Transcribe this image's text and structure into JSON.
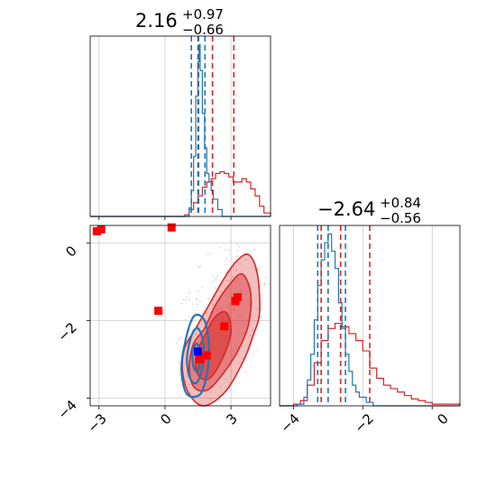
{
  "chart_data": {
    "type": "corner",
    "colors": {
      "red": "#d62728",
      "blue": "#1f77b4",
      "marker_red": "#ff0000",
      "marker_blue": "#0000ff",
      "grid": "#cccccc"
    },
    "titles": [
      {
        "main": "2.16",
        "sup": "+0.97",
        "sub": "−0.66"
      },
      {
        "main": "−2.64",
        "sup": "+0.84",
        "sub": "−0.56"
      }
    ],
    "x_ticks_param0": [
      "−3",
      "0",
      "3"
    ],
    "x_ticks_param1": [
      "−4",
      "−2",
      "0"
    ],
    "y_ticks_param1": [
      "0",
      "−2",
      "−4"
    ],
    "xlim_param0": [
      -3.4,
      4.8
    ],
    "xlim_param1": [
      -4.4,
      0.8
    ],
    "ylim_param1": [
      -4.2,
      0.45
    ],
    "hist_param0": {
      "red_quantiles": [
        1.5,
        2.16,
        3.13
      ],
      "blue_quantiles": [
        1.2,
        1.53,
        1.82
      ],
      "red": [
        [
          -3.4,
          0
        ],
        [
          0.5,
          0
        ],
        [
          0.9,
          0.01
        ],
        [
          1.1,
          0.04
        ],
        [
          1.3,
          0.08
        ],
        [
          1.5,
          0.12
        ],
        [
          1.7,
          0.17
        ],
        [
          1.9,
          0.2
        ],
        [
          2.1,
          0.22
        ],
        [
          2.3,
          0.25
        ],
        [
          2.5,
          0.26
        ],
        [
          2.7,
          0.25
        ],
        [
          2.9,
          0.23
        ],
        [
          3.1,
          0.2
        ],
        [
          3.3,
          0.2
        ],
        [
          3.5,
          0.22
        ],
        [
          3.7,
          0.2
        ],
        [
          3.9,
          0.16
        ],
        [
          4.1,
          0.12
        ],
        [
          4.3,
          0.06
        ],
        [
          4.5,
          0.02
        ],
        [
          4.8,
          0
        ]
      ],
      "blue": [
        [
          -3.4,
          0
        ],
        [
          0.9,
          0
        ],
        [
          1.1,
          0.05
        ],
        [
          1.2,
          0.15
        ],
        [
          1.3,
          0.35
        ],
        [
          1.4,
          0.7
        ],
        [
          1.5,
          0.9
        ],
        [
          1.55,
          1.0
        ],
        [
          1.6,
          0.85
        ],
        [
          1.7,
          0.6
        ],
        [
          1.8,
          0.4
        ],
        [
          1.9,
          0.25
        ],
        [
          2.0,
          0.2
        ],
        [
          2.1,
          0.15
        ],
        [
          2.2,
          0.1
        ],
        [
          2.4,
          0.04
        ],
        [
          2.6,
          0
        ],
        [
          4.8,
          0
        ]
      ]
    },
    "hist_param1": {
      "red_quantiles": [
        -3.2,
        -2.64,
        -1.8
      ],
      "blue_quantiles": [
        -3.3,
        -3.0,
        -2.5
      ],
      "red": [
        [
          -4.4,
          0
        ],
        [
          -4.0,
          0.01
        ],
        [
          -3.8,
          0.03
        ],
        [
          -3.6,
          0.12
        ],
        [
          -3.4,
          0.25
        ],
        [
          -3.2,
          0.38
        ],
        [
          -3.0,
          0.45
        ],
        [
          -2.8,
          0.48
        ],
        [
          -2.6,
          0.46
        ],
        [
          -2.4,
          0.42
        ],
        [
          -2.2,
          0.38
        ],
        [
          -2.0,
          0.32
        ],
        [
          -1.8,
          0.22
        ],
        [
          -1.6,
          0.16
        ],
        [
          -1.4,
          0.12
        ],
        [
          -1.2,
          0.1
        ],
        [
          -1.0,
          0.08
        ],
        [
          -0.8,
          0.06
        ],
        [
          -0.6,
          0.04
        ],
        [
          -0.4,
          0.03
        ],
        [
          -0.2,
          0.02
        ],
        [
          0.0,
          0.01
        ],
        [
          0.2,
          0.01
        ],
        [
          0.8,
          0
        ]
      ],
      "blue": [
        [
          -4.4,
          0
        ],
        [
          -3.9,
          0.01
        ],
        [
          -3.7,
          0.05
        ],
        [
          -3.6,
          0.15
        ],
        [
          -3.5,
          0.3
        ],
        [
          -3.4,
          0.5
        ],
        [
          -3.3,
          0.7
        ],
        [
          -3.2,
          0.85
        ],
        [
          -3.1,
          0.95
        ],
        [
          -3.0,
          1.0
        ],
        [
          -2.9,
          0.9
        ],
        [
          -2.8,
          0.8
        ],
        [
          -2.7,
          0.6
        ],
        [
          -2.6,
          0.45
        ],
        [
          -2.5,
          0.3
        ],
        [
          -2.4,
          0.2
        ],
        [
          -2.3,
          0.12
        ],
        [
          -2.2,
          0.08
        ],
        [
          -2.1,
          0.05
        ],
        [
          -1.9,
          0.02
        ],
        [
          -1.7,
          0
        ],
        [
          0.8,
          0
        ]
      ]
    },
    "scatter_red_markers": [
      [
        -3.1,
        0.3
      ],
      [
        -2.9,
        0.35
      ],
      [
        0.3,
        0.4
      ],
      [
        -0.3,
        -1.75
      ],
      [
        3.3,
        -1.4
      ],
      [
        3.2,
        -1.5
      ],
      [
        2.7,
        -2.15
      ],
      [
        1.9,
        -2.9
      ],
      [
        1.6,
        -3.0
      ]
    ],
    "scatter_blue_markers": [
      [
        1.5,
        -2.8
      ]
    ],
    "contours_red": [
      {
        "alpha": 0.5,
        "points": [
          [
            1.1,
            -3.9
          ],
          [
            0.8,
            -3.3
          ],
          [
            0.9,
            -2.7
          ],
          [
            1.4,
            -2.2
          ],
          [
            2.0,
            -1.6
          ],
          [
            2.6,
            -1.0
          ],
          [
            3.2,
            -0.5
          ],
          [
            3.8,
            -0.3
          ],
          [
            4.2,
            -0.8
          ],
          [
            4.3,
            -1.8
          ],
          [
            4.0,
            -2.4
          ],
          [
            3.6,
            -3.0
          ],
          [
            2.8,
            -3.8
          ],
          [
            1.8,
            -4.2
          ]
        ]
      },
      {
        "alpha": 0.7,
        "points": [
          [
            1.3,
            -3.7
          ],
          [
            1.1,
            -3.2
          ],
          [
            1.3,
            -2.6
          ],
          [
            1.8,
            -2.2
          ],
          [
            2.3,
            -1.6
          ],
          [
            2.9,
            -1.1
          ],
          [
            3.5,
            -0.8
          ],
          [
            3.9,
            -1.3
          ],
          [
            3.8,
            -2.1
          ],
          [
            3.3,
            -2.8
          ],
          [
            2.6,
            -3.4
          ],
          [
            1.9,
            -3.8
          ]
        ]
      },
      {
        "alpha": 0.9,
        "points": [
          [
            1.5,
            -3.4
          ],
          [
            1.4,
            -2.9
          ],
          [
            1.8,
            -2.4
          ],
          [
            2.3,
            -1.9
          ],
          [
            2.8,
            -1.8
          ],
          [
            3.0,
            -2.3
          ],
          [
            2.6,
            -3.0
          ],
          [
            2.0,
            -3.5
          ]
        ]
      }
    ],
    "contours_blue": [
      {
        "points": [
          [
            1.0,
            -3.9
          ],
          [
            0.75,
            -3.3
          ],
          [
            0.9,
            -2.6
          ],
          [
            1.3,
            -1.9
          ],
          [
            1.8,
            -2.0
          ],
          [
            2.0,
            -2.7
          ],
          [
            1.9,
            -3.4
          ],
          [
            1.6,
            -3.9
          ]
        ]
      },
      {
        "points": [
          [
            1.15,
            -3.5
          ],
          [
            1.0,
            -3.0
          ],
          [
            1.2,
            -2.4
          ],
          [
            1.5,
            -2.2
          ],
          [
            1.75,
            -2.6
          ],
          [
            1.7,
            -3.2
          ],
          [
            1.45,
            -3.6
          ]
        ]
      },
      {
        "points": [
          [
            1.3,
            -3.2
          ],
          [
            1.25,
            -2.8
          ],
          [
            1.45,
            -2.6
          ],
          [
            1.6,
            -2.9
          ],
          [
            1.5,
            -3.3
          ]
        ]
      }
    ]
  }
}
